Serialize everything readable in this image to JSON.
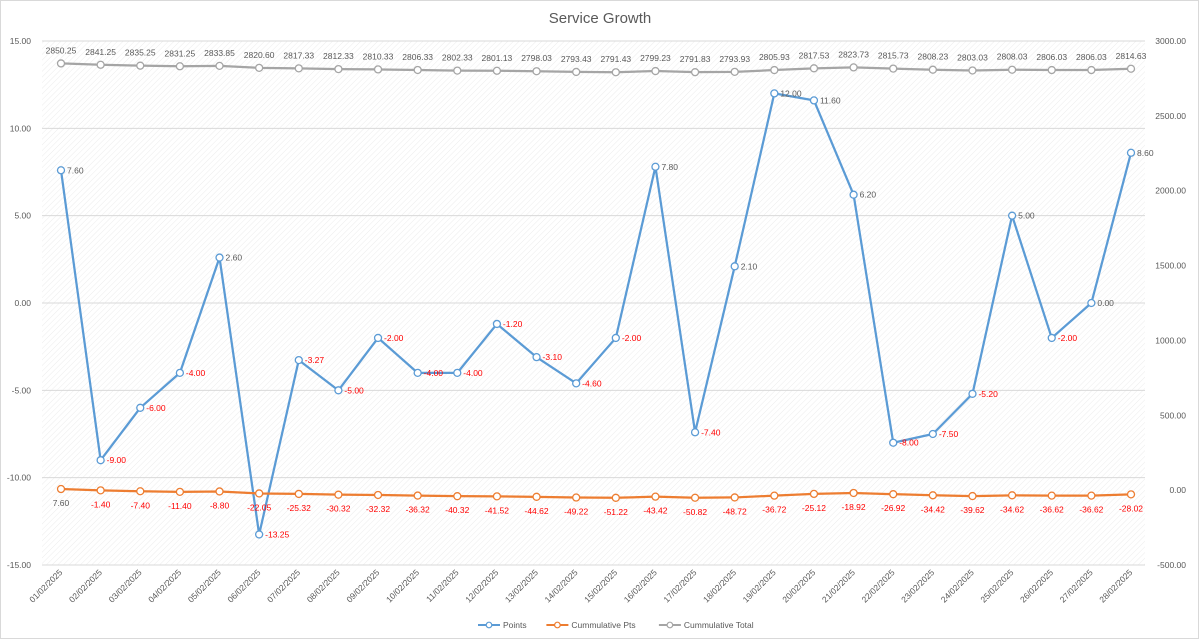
{
  "chart_data": {
    "type": "line",
    "title": "Service Growth",
    "categories": [
      "01/02/2025",
      "02/02/2025",
      "03/02/2025",
      "04/02/2025",
      "05/02/2025",
      "06/02/2025",
      "07/02/2025",
      "08/02/2025",
      "09/02/2025",
      "10/02/2025",
      "11/02/2025",
      "12/02/2025",
      "13/02/2025",
      "14/02/2025",
      "15/02/2025",
      "16/02/2025",
      "17/02/2025",
      "18/02/2025",
      "19/02/2025",
      "20/02/2025",
      "21/02/2025",
      "22/02/2025",
      "23/02/2025",
      "24/02/2025",
      "25/02/2025",
      "26/02/2025",
      "27/02/2025",
      "28/02/2025"
    ],
    "y_left": {
      "min": -15,
      "max": 15,
      "step": 5,
      "ticks": [
        "15.00",
        "10.00",
        "5.00",
        "0.00",
        "-5.00",
        "-10.00",
        "-15.00"
      ]
    },
    "y_right": {
      "min": -500,
      "max": 3000,
      "step": 500,
      "ticks": [
        "3000.00",
        "2500.00",
        "2000.00",
        "1500.00",
        "1000.00",
        "500.00",
        "0.00",
        "-500.00"
      ]
    },
    "grid": true,
    "legend_position": "bottom",
    "series": [
      {
        "name": "Points",
        "axis": "left",
        "color": "#5b9bd5",
        "label_color": "#595959",
        "negative_label_color": "#ff0000",
        "values": [
          7.6,
          -9.0,
          -6.0,
          -4.0,
          2.6,
          -13.25,
          -3.27,
          -5.0,
          -2.0,
          -4.0,
          -4.0,
          -1.2,
          -3.1,
          -4.6,
          -2.0,
          7.8,
          -7.4,
          2.1,
          12.0,
          11.6,
          6.2,
          -8.0,
          -7.5,
          -5.2,
          5.0,
          -2.0,
          0.0,
          8.6
        ],
        "labels": [
          "7.60",
          "-9.00",
          "-6.00",
          "-4.00",
          "2.60",
          "-13.25",
          "-3.27",
          "-5.00",
          "-2.00",
          "-4.00",
          "-4.00",
          "-1.20",
          "-3.10",
          "-4.60",
          "-2.00",
          "7.80",
          "-7.40",
          "2.10",
          "12.00",
          "11.60",
          "6.20",
          "-8.00",
          "-7.50",
          "-5.20",
          "5.00",
          "-2.00",
          "0.00",
          "8.60"
        ]
      },
      {
        "name": "Cummulative Pts",
        "axis": "right",
        "color": "#ed7d31",
        "label_color": "#595959",
        "negative_label_color": "#ff0000",
        "values": [
          7.6,
          -1.4,
          -7.4,
          -11.4,
          -8.8,
          -22.05,
          -25.32,
          -30.32,
          -32.32,
          -36.32,
          -40.32,
          -41.52,
          -44.62,
          -49.22,
          -51.22,
          -43.42,
          -50.82,
          -48.72,
          -36.72,
          -25.12,
          -18.92,
          -26.92,
          -34.42,
          -39.62,
          -34.62,
          -36.62,
          -36.62,
          -28.02
        ],
        "labels": [
          "7.60",
          "-1.40",
          "-7.40",
          "-11.40",
          "-8.80",
          "-22.05",
          "-25.32",
          "-30.32",
          "-32.32",
          "-36.32",
          "-40.32",
          "-41.52",
          "-44.62",
          "-49.22",
          "-51.22",
          "-43.42",
          "-50.82",
          "-48.72",
          "-36.72",
          "-25.12",
          "-18.92",
          "-26.92",
          "-34.42",
          "-39.62",
          "-34.62",
          "-36.62",
          "-36.62",
          "-28.02"
        ]
      },
      {
        "name": "Cummulative Total",
        "axis": "right",
        "color": "#a5a5a5",
        "label_color": "#595959",
        "negative_label_color": "#595959",
        "values": [
          2850.25,
          2841.25,
          2835.25,
          2831.25,
          2833.85,
          2820.6,
          2817.33,
          2812.33,
          2810.33,
          2806.33,
          2802.33,
          2801.13,
          2798.03,
          2793.43,
          2791.43,
          2799.23,
          2791.83,
          2793.93,
          2805.93,
          2817.53,
          2823.73,
          2815.73,
          2808.23,
          2803.03,
          2808.03,
          2806.03,
          2806.03,
          2814.63
        ],
        "labels": [
          "2850.25",
          "2841.25",
          "2835.25",
          "2831.25",
          "2833.85",
          "2820.60",
          "2817.33",
          "2812.33",
          "2810.33",
          "2806.33",
          "2802.33",
          "2801.13",
          "2798.03",
          "2793.43",
          "2791.43",
          "2799.23",
          "2791.83",
          "2793.93",
          "2805.93",
          "2817.53",
          "2823.73",
          "2815.73",
          "2808.23",
          "2803.03",
          "2808.03",
          "2806.03",
          "2806.03",
          "2814.63"
        ]
      }
    ]
  }
}
